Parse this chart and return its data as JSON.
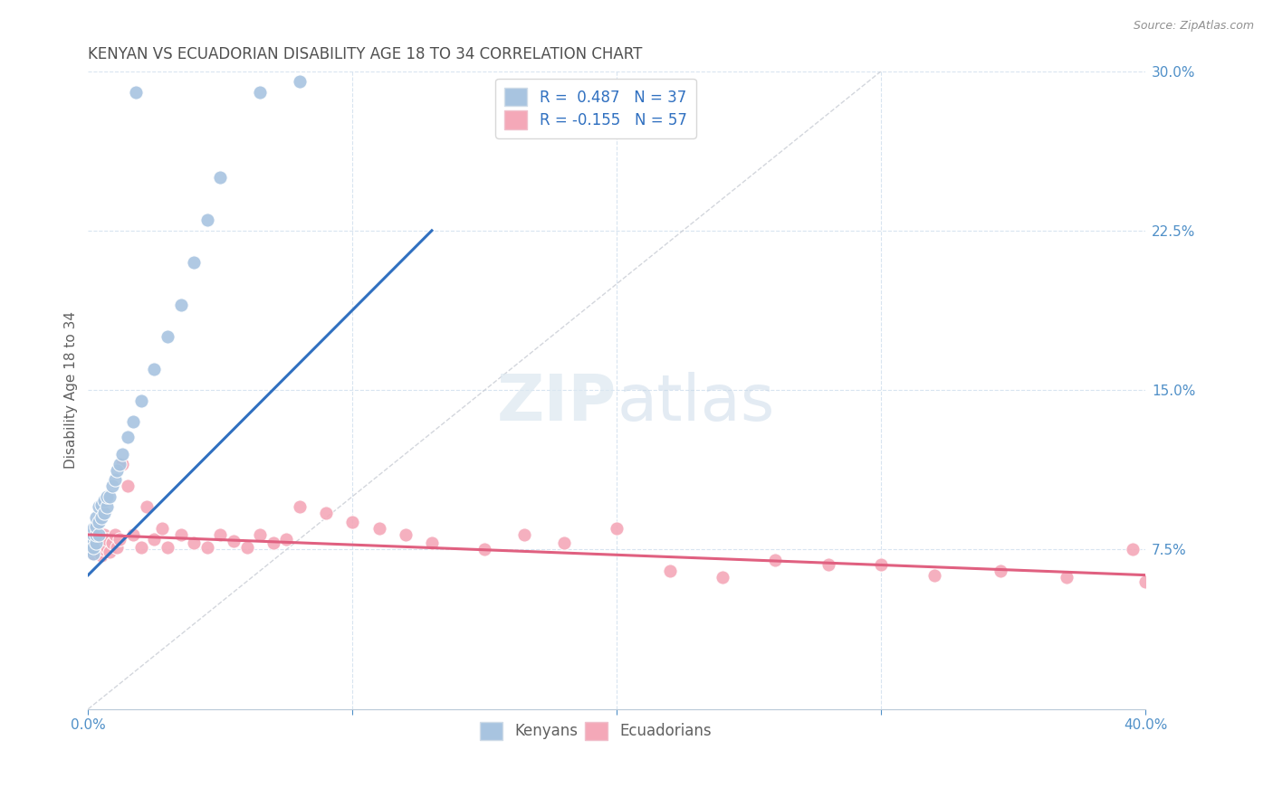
{
  "title": "KENYAN VS ECUADORIAN DISABILITY AGE 18 TO 34 CORRELATION CHART",
  "source": "Source: ZipAtlas.com",
  "legend_kenyans": "Kenyans",
  "legend_ecuadorians": "Ecuadorians",
  "kenyan_R": "0.487",
  "kenyan_N": "37",
  "ecuadorian_R": "-0.155",
  "ecuadorian_N": "57",
  "kenyan_color": "#a8c4e0",
  "ecuadorian_color": "#f4a8b8",
  "kenyan_line_color": "#3070c0",
  "ecuadorian_line_color": "#e06080",
  "reference_line_color": "#c8ccd4",
  "background_color": "#ffffff",
  "grid_color": "#d8e4f0",
  "title_color": "#505050",
  "axis_label_color": "#5090c8",
  "ylabel": "Disability Age 18 to 34",
  "xlim": [
    0,
    0.4
  ],
  "ylim": [
    0,
    0.3
  ],
  "ytick_vals": [
    0.075,
    0.15,
    0.225,
    0.3
  ],
  "ytick_labels": [
    "7.5%",
    "15.0%",
    "22.5%",
    "30.0%"
  ],
  "kenyan_x": [
    0.001,
    0.001,
    0.001,
    0.002,
    0.002,
    0.002,
    0.002,
    0.003,
    0.003,
    0.003,
    0.003,
    0.004,
    0.004,
    0.004,
    0.005,
    0.005,
    0.006,
    0.006,
    0.007,
    0.007,
    0.008,
    0.009,
    0.01,
    0.011,
    0.012,
    0.013,
    0.015,
    0.017,
    0.02,
    0.025,
    0.03,
    0.035,
    0.04,
    0.045,
    0.05,
    0.065,
    0.08
  ],
  "kenyan_y": [
    0.075,
    0.078,
    0.08,
    0.073,
    0.076,
    0.082,
    0.085,
    0.078,
    0.082,
    0.086,
    0.09,
    0.082,
    0.088,
    0.095,
    0.09,
    0.096,
    0.092,
    0.098,
    0.095,
    0.1,
    0.1,
    0.105,
    0.108,
    0.112,
    0.115,
    0.12,
    0.128,
    0.135,
    0.145,
    0.16,
    0.175,
    0.19,
    0.21,
    0.23,
    0.25,
    0.29,
    0.295
  ],
  "kenyan_outlier_x": [
    0.018
  ],
  "kenyan_outlier_y": [
    0.29
  ],
  "ecuadorian_x": [
    0.001,
    0.001,
    0.002,
    0.002,
    0.002,
    0.003,
    0.003,
    0.004,
    0.004,
    0.005,
    0.005,
    0.006,
    0.006,
    0.007,
    0.007,
    0.008,
    0.009,
    0.01,
    0.011,
    0.012,
    0.013,
    0.015,
    0.017,
    0.02,
    0.022,
    0.025,
    0.028,
    0.03,
    0.035,
    0.04,
    0.045,
    0.05,
    0.055,
    0.06,
    0.065,
    0.07,
    0.075,
    0.08,
    0.09,
    0.1,
    0.11,
    0.12,
    0.13,
    0.15,
    0.165,
    0.18,
    0.2,
    0.22,
    0.24,
    0.26,
    0.28,
    0.3,
    0.32,
    0.345,
    0.37,
    0.395,
    0.4
  ],
  "ecuadorian_y": [
    0.075,
    0.08,
    0.073,
    0.078,
    0.082,
    0.076,
    0.08,
    0.074,
    0.079,
    0.072,
    0.078,
    0.075,
    0.082,
    0.076,
    0.08,
    0.074,
    0.078,
    0.082,
    0.076,
    0.08,
    0.115,
    0.105,
    0.082,
    0.076,
    0.095,
    0.08,
    0.085,
    0.076,
    0.082,
    0.078,
    0.076,
    0.082,
    0.079,
    0.076,
    0.082,
    0.078,
    0.08,
    0.095,
    0.092,
    0.088,
    0.085,
    0.082,
    0.078,
    0.075,
    0.082,
    0.078,
    0.085,
    0.065,
    0.062,
    0.07,
    0.068,
    0.068,
    0.063,
    0.065,
    0.062,
    0.075,
    0.06
  ],
  "kenyan_trend_x": [
    0.0,
    0.13
  ],
  "kenyan_trend_y": [
    0.063,
    0.225
  ],
  "ecuadorian_trend_x": [
    0.0,
    0.4
  ],
  "ecuadorian_trend_y": [
    0.082,
    0.063
  ],
  "ref_line_x": [
    0.0,
    0.3
  ],
  "ref_line_y": [
    0.0,
    0.3
  ]
}
